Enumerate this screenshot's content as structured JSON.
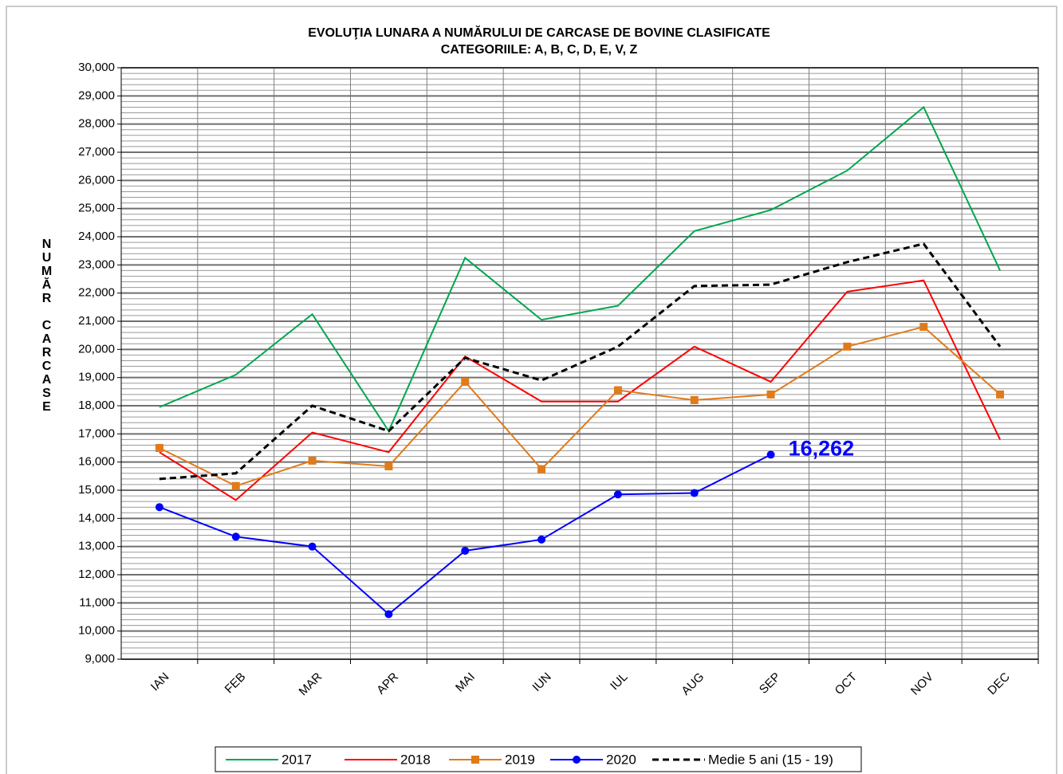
{
  "chart_data": {
    "type": "line",
    "title": "EVOLUŢIA LUNARA  A NUMĂRULUI DE CARCASE DE BOVINE  CLASIFICATE",
    "subtitle": "CATEGORIILE: A, B, C, D, E, V, Z",
    "y_label": "NUMĂR CARCASE",
    "categories": [
      "IAN",
      "FEB",
      "MAR",
      "APR",
      "MAI",
      "IUN",
      "IUL",
      "AUG",
      "SEP",
      "OCT",
      "NOV",
      "DEC"
    ],
    "series": [
      {
        "name": "2017",
        "color": "#00a64f",
        "marker": null,
        "dashed": false,
        "values": [
          17950,
          19100,
          21250,
          17100,
          23250,
          21050,
          21550,
          24200,
          24950,
          26350,
          28600,
          22800
        ]
      },
      {
        "name": "2018",
        "color": "#ff0000",
        "marker": null,
        "dashed": false,
        "values": [
          16350,
          14650,
          17050,
          16350,
          19750,
          18150,
          18150,
          20100,
          18850,
          22050,
          22450,
          16800
        ]
      },
      {
        "name": "2019",
        "color": "#e07b1a",
        "marker": "square",
        "dashed": false,
        "values": [
          16500,
          15150,
          16050,
          15850,
          18850,
          15750,
          18550,
          18200,
          18400,
          20100,
          20800,
          18400
        ]
      },
      {
        "name": "2020",
        "color": "#0000ff",
        "marker": "circle",
        "dashed": false,
        "values": [
          14400,
          13350,
          13000,
          10600,
          12850,
          13250,
          14850,
          14900,
          16262,
          null,
          null,
          null
        ],
        "value_labels": [
          null,
          null,
          null,
          null,
          null,
          null,
          null,
          null,
          "16,262",
          null,
          null,
          null
        ]
      },
      {
        "name": "Medie 5 ani (15 - 19)",
        "color": "#000000",
        "marker": null,
        "dashed": true,
        "values": [
          15400,
          15600,
          18000,
          17100,
          19700,
          18900,
          20100,
          22250,
          22300,
          23100,
          23750,
          20100
        ]
      }
    ],
    "ylim": [
      9000,
      30000
    ],
    "yticks": [
      {
        "value": 9000,
        "label": "9,000"
      },
      {
        "value": 10000,
        "label": "10,000"
      },
      {
        "value": 11000,
        "label": "11,000"
      },
      {
        "value": 12000,
        "label": "12,000"
      },
      {
        "value": 13000,
        "label": "13,000"
      },
      {
        "value": 14000,
        "label": "14,000"
      },
      {
        "value": 15000,
        "label": "15,000"
      },
      {
        "value": 16000,
        "label": "16,000"
      },
      {
        "value": 17000,
        "label": "17,000"
      },
      {
        "value": 18000,
        "label": "18,000"
      },
      {
        "value": 19000,
        "label": "19,000"
      },
      {
        "value": 20000,
        "label": "20,000"
      },
      {
        "value": 21000,
        "label": "21,000"
      },
      {
        "value": 22000,
        "label": "22,000"
      },
      {
        "value": 23000,
        "label": "23,000"
      },
      {
        "value": 24000,
        "label": "24,000"
      },
      {
        "value": 25000,
        "label": "25,000"
      },
      {
        "value": 26000,
        "label": "26,000"
      },
      {
        "value": 27000,
        "label": "27,000"
      },
      {
        "value": 28000,
        "label": "28,000"
      },
      {
        "value": 29000,
        "label": "29,000"
      },
      {
        "value": 30000,
        "label": "30,000"
      }
    ],
    "grid": true,
    "minor_grid": true,
    "legend": "bottom"
  }
}
